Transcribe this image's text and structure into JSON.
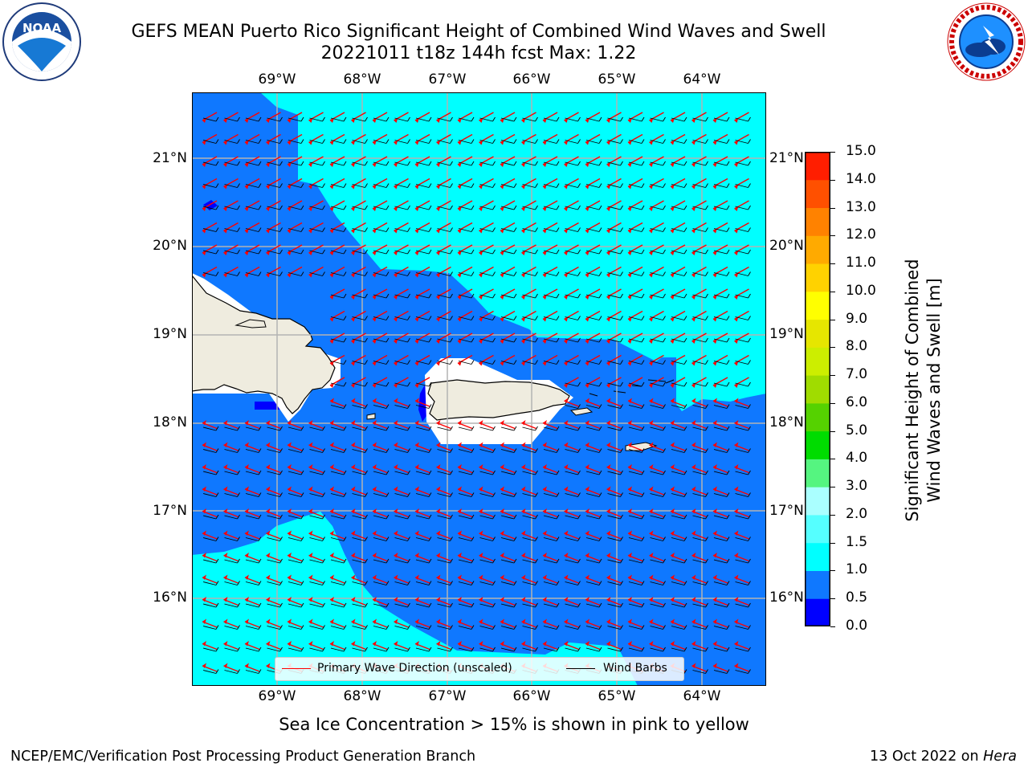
{
  "header": {
    "title_line1": "GEFS MEAN Puerto Rico Significant Height of Combined Wind Waves and Swell",
    "title_line2": "20221011 t18z 144h fcst   Max: 1.22"
  },
  "logos": {
    "left": {
      "name": "NOAA",
      "text": "NOAA",
      "ring_text": "NATIONAL OCEANIC AND ATMOSPHERIC ADMINISTRATION · U.S. DEPARTMENT OF COMMERCE"
    },
    "right": {
      "name": "National Weather Service",
      "ring_text": "NATIONAL WEATHER SERVICE"
    }
  },
  "axes": {
    "lon_labels": [
      "69°W",
      "68°W",
      "67°W",
      "66°W",
      "65°W",
      "64°W"
    ],
    "lat_labels": [
      "21°N",
      "20°N",
      "19°N",
      "18°N",
      "17°N",
      "16°N"
    ]
  },
  "colorbar": {
    "label_line1": "Significant Height of Combined",
    "label_line2": "Wind Waves and Swell [m]",
    "ticks": [
      "0.0",
      "0.5",
      "1.0",
      "1.5",
      "2.0",
      "3.0",
      "4.0",
      "5.0",
      "6.0",
      "7.0",
      "8.0",
      "9.0",
      "10.0",
      "11.0",
      "12.0",
      "13.0",
      "14.0",
      "15.0"
    ],
    "colors": [
      "#0000ff",
      "#0f78ff",
      "#00ffff",
      "#55ffff",
      "#aaffff",
      "#55f580",
      "#00dc00",
      "#55d200",
      "#a0dc00",
      "#ccee00",
      "#e6e600",
      "#ffff00",
      "#ffd200",
      "#ffaa00",
      "#ff8200",
      "#ff5000",
      "#ff1e00"
    ]
  },
  "legend": {
    "wave_direction": "Primary Wave Direction (unscaled)",
    "wind_barbs": "Wind Barbs",
    "wave_color": "#ff0000",
    "barb_color": "#000000"
  },
  "footer": {
    "ice_note": "Sea Ice Concentration > 15% is shown in pink to yellow",
    "producer": "NCEP/EMC/Verification Post Processing Product Generation Branch",
    "date": "13 Oct 2022 on ",
    "machine": "Hera"
  },
  "map": {
    "land_color": "#efecdf",
    "low_wave_color": "#0f78ff",
    "mid_wave_color": "#00ffff",
    "lowest_wave_color": "#0000ff",
    "grid_color": "#b3b3b3"
  }
}
